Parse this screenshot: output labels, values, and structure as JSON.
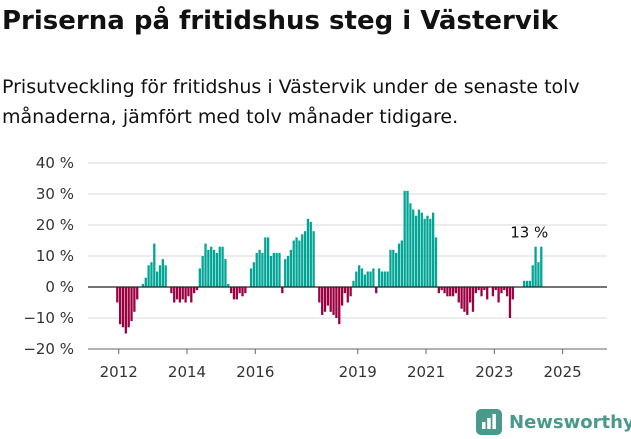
{
  "title": "Priserna på fritidshus steg i Västervik",
  "subtitle": "Prisutveckling för fritidshus i Västervik under de senaste tolv månaderna, jämfört med tolv månader tidigare.",
  "brand": {
    "name": "Newsworthy"
  },
  "colors": {
    "positive": "#00a596",
    "negative": "#9b0040",
    "axis": "#222222",
    "grid": "#d9d9d9"
  },
  "chart_data": {
    "type": "bar",
    "title": "",
    "xlabel": "",
    "ylabel": "",
    "ylim": [
      -20,
      40
    ],
    "yticks": [
      40,
      30,
      20,
      10,
      0,
      -10,
      -20
    ],
    "ytick_labels": [
      "40 %",
      "30 %",
      "20 %",
      "10 %",
      "0 %",
      "−10 %",
      "−20 %"
    ],
    "xticks": [
      2012,
      2014,
      2016,
      2019,
      2021,
      2023,
      2025
    ],
    "xlim": [
      2011.1,
      2026.3
    ],
    "period_start": "2011-12",
    "annotation": {
      "text": "13 %",
      "value": 13
    },
    "values": [
      -5,
      -12,
      -13,
      -15,
      -13,
      -11,
      -8,
      -4,
      0,
      1,
      3,
      7,
      8,
      14,
      5,
      7,
      9,
      7,
      0,
      -2,
      -5,
      -4,
      -5,
      -4,
      -5,
      -3,
      -5,
      -2,
      -1,
      6,
      10,
      14,
      12,
      13,
      12,
      11,
      13,
      13,
      9,
      1,
      -2,
      -4,
      -4,
      -2,
      -3,
      -2,
      0,
      6,
      8,
      11,
      12,
      11,
      16,
      16,
      10,
      11,
      11,
      11,
      -2,
      9,
      10,
      12,
      15,
      16,
      15,
      17,
      18,
      22,
      21,
      18,
      0,
      -5,
      -9,
      -8,
      -6,
      -8,
      -9,
      -10,
      -12,
      -6,
      -2,
      -5,
      -3,
      2,
      5,
      7,
      6,
      4,
      5,
      5,
      6,
      -2,
      6,
      5,
      5,
      5,
      12,
      12,
      11,
      14,
      15,
      31,
      31,
      27,
      25,
      23,
      25,
      24,
      22,
      23,
      22,
      24,
      16,
      -2,
      -1,
      -2,
      -3,
      -3,
      -3,
      -2,
      -5,
      -7,
      -8,
      -9,
      -5,
      -8,
      -2,
      -1,
      -3,
      -1,
      -4,
      0,
      -3,
      -1,
      -5,
      -2,
      -1,
      -3,
      -10,
      -4,
      0,
      0,
      0,
      2,
      2,
      2,
      7,
      13,
      8,
      13
    ]
  }
}
